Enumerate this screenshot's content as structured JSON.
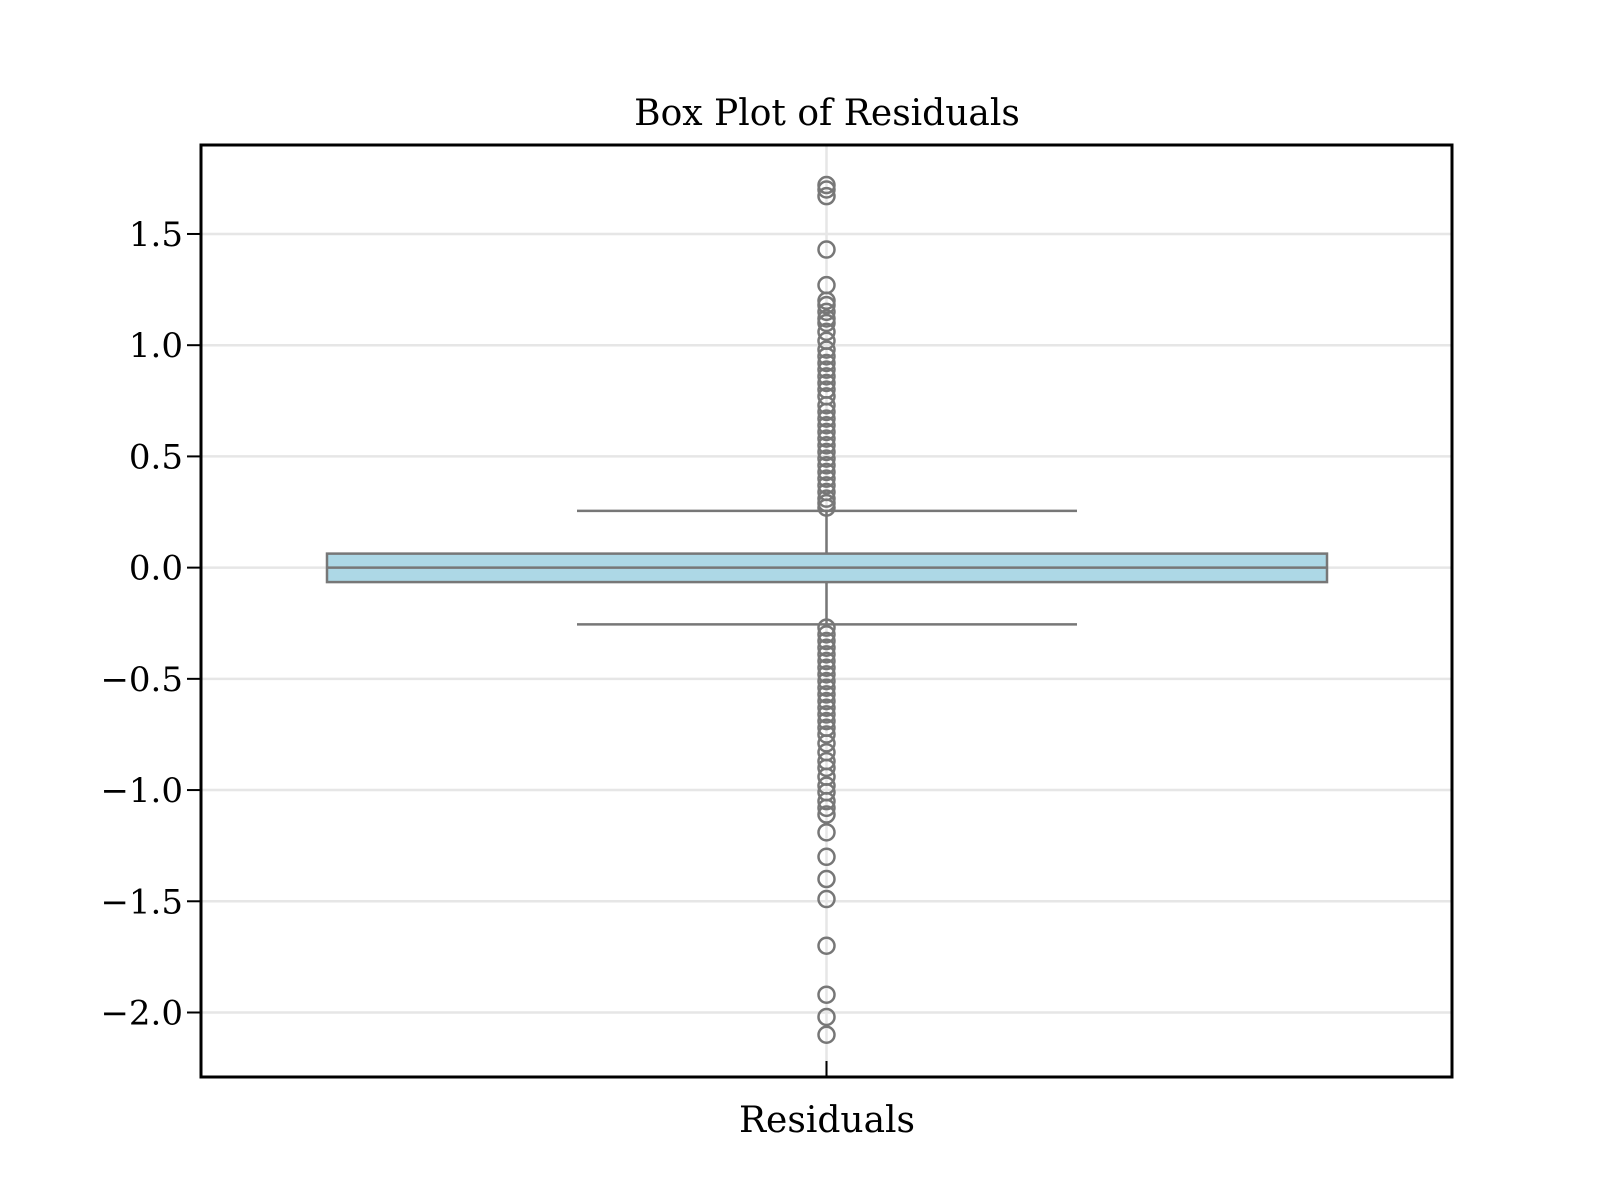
{
  "chart_data": {
    "type": "box",
    "title": "Box Plot of Residuals",
    "xlabel": "Residuals",
    "ylabel": "",
    "categories": [
      "Residuals"
    ],
    "ylim": [
      -2.29,
      1.9
    ],
    "yticks": [
      -2.0,
      -1.5,
      -1.0,
      -0.5,
      0.0,
      0.5,
      1.0,
      1.5
    ],
    "ytick_labels": [
      "−2.0",
      "−1.5",
      "−1.0",
      "−0.5",
      "0.0",
      "0.5",
      "1.0",
      "1.5"
    ],
    "grid": true,
    "legend": "none",
    "series": [
      {
        "stats": {
          "whisker_low": -0.255,
          "q1": -0.065,
          "median": 0.0,
          "q3": 0.063,
          "whisker_high": 0.255
        },
        "outliers_high": [
          1.72,
          1.7,
          1.67,
          1.43,
          1.27,
          1.2,
          1.18,
          1.15,
          1.12,
          1.1,
          1.06,
          1.02,
          0.98,
          0.95,
          0.92,
          0.89,
          0.86,
          0.83,
          0.8,
          0.77,
          0.73,
          0.7,
          0.67,
          0.64,
          0.61,
          0.58,
          0.55,
          0.52,
          0.49,
          0.46,
          0.43,
          0.4,
          0.37,
          0.34,
          0.31,
          0.29,
          0.27
        ],
        "outliers_low": [
          -0.27,
          -0.3,
          -0.33,
          -0.36,
          -0.39,
          -0.42,
          -0.45,
          -0.48,
          -0.51,
          -0.54,
          -0.57,
          -0.6,
          -0.63,
          -0.66,
          -0.69,
          -0.72,
          -0.75,
          -0.79,
          -0.83,
          -0.87,
          -0.9,
          -0.94,
          -0.98,
          -1.01,
          -1.05,
          -1.08,
          -1.11,
          -1.19,
          -1.3,
          -1.4,
          -1.49,
          -1.7,
          -1.92,
          -2.02,
          -2.1
        ]
      }
    ],
    "colors": {
      "box_fill": "#add8e6",
      "box_edge": "#777777",
      "grid": "#e6e6e6",
      "frame": "#000000"
    }
  }
}
